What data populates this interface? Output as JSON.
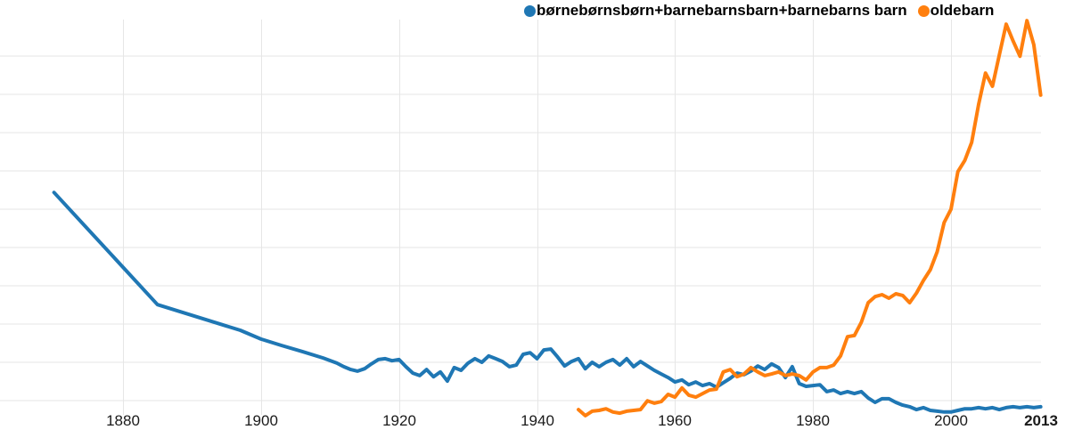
{
  "legend": {
    "items": [
      {
        "label": "børnebørnsbørn+barnebarnsbarn+barnebarns barn",
        "color": "#1f77b4"
      },
      {
        "label": "oldebarn",
        "color": "#ff7f0e"
      }
    ]
  },
  "axis": {
    "x_ticks": [
      {
        "label": "1880",
        "year": 1880,
        "bold": false,
        "gridline": true
      },
      {
        "label": "1900",
        "year": 1900,
        "bold": false,
        "gridline": true
      },
      {
        "label": "1920",
        "year": 1920,
        "bold": false,
        "gridline": true
      },
      {
        "label": "1940",
        "year": 1940,
        "bold": false,
        "gridline": true
      },
      {
        "label": "1960",
        "year": 1960,
        "bold": false,
        "gridline": true
      },
      {
        "label": "1980",
        "year": 1980,
        "bold": false,
        "gridline": true
      },
      {
        "label": "2000",
        "year": 2000,
        "bold": false,
        "gridline": true
      },
      {
        "label": "2013",
        "year": 2013,
        "bold": true,
        "gridline": false
      }
    ]
  },
  "chart_data": {
    "type": "line",
    "title": "",
    "xlabel": "",
    "ylabel": "",
    "x_range": [
      1868,
      2013
    ],
    "y_range": [
      0,
      100
    ],
    "y_unit": "relative frequency (y axis unlabeled; values are % of plot height)",
    "grid": "light horizontal gridlines + vertical gridlines at x ticks",
    "legend_position": "top",
    "grid_color": "#e6e6e6",
    "series": [
      {
        "name": "børnebørnsbørn+barnebarnsbarn+barnebarns barn",
        "color": "#1f77b4",
        "points": [
          [
            1870,
            56.4
          ],
          [
            1885,
            28.4
          ],
          [
            1897,
            22.0
          ],
          [
            1900,
            19.8
          ],
          [
            1903,
            18.2
          ],
          [
            1906,
            16.7
          ],
          [
            1909,
            15.1
          ],
          [
            1911,
            13.8
          ],
          [
            1912,
            12.9
          ],
          [
            1913,
            12.2
          ],
          [
            1914,
            11.8
          ],
          [
            1915,
            12.4
          ],
          [
            1916,
            13.6
          ],
          [
            1917,
            14.7
          ],
          [
            1918,
            14.9
          ],
          [
            1919,
            14.4
          ],
          [
            1920,
            14.7
          ],
          [
            1921,
            12.9
          ],
          [
            1922,
            11.3
          ],
          [
            1923,
            10.7
          ],
          [
            1924,
            12.2
          ],
          [
            1925,
            10.4
          ],
          [
            1926,
            11.6
          ],
          [
            1927,
            9.3
          ],
          [
            1928,
            12.7
          ],
          [
            1929,
            12.0
          ],
          [
            1930,
            13.8
          ],
          [
            1931,
            14.9
          ],
          [
            1932,
            14.0
          ],
          [
            1933,
            15.6
          ],
          [
            1934,
            14.9
          ],
          [
            1935,
            14.2
          ],
          [
            1936,
            12.9
          ],
          [
            1937,
            13.3
          ],
          [
            1938,
            16.0
          ],
          [
            1939,
            16.4
          ],
          [
            1940,
            14.9
          ],
          [
            1941,
            17.1
          ],
          [
            1942,
            17.3
          ],
          [
            1943,
            15.3
          ],
          [
            1944,
            13.1
          ],
          [
            1945,
            14.2
          ],
          [
            1946,
            14.9
          ],
          [
            1947,
            12.4
          ],
          [
            1948,
            14.0
          ],
          [
            1949,
            12.9
          ],
          [
            1950,
            14.0
          ],
          [
            1951,
            14.7
          ],
          [
            1952,
            13.3
          ],
          [
            1953,
            14.9
          ],
          [
            1954,
            12.9
          ],
          [
            1955,
            14.2
          ],
          [
            1956,
            13.1
          ],
          [
            1957,
            12.0
          ],
          [
            1958,
            11.1
          ],
          [
            1959,
            10.2
          ],
          [
            1960,
            9.1
          ],
          [
            1961,
            9.6
          ],
          [
            1962,
            8.4
          ],
          [
            1963,
            9.1
          ],
          [
            1964,
            8.2
          ],
          [
            1965,
            8.7
          ],
          [
            1966,
            7.8
          ],
          [
            1967,
            8.9
          ],
          [
            1968,
            10.0
          ],
          [
            1969,
            11.3
          ],
          [
            1970,
            10.9
          ],
          [
            1971,
            11.8
          ],
          [
            1972,
            13.1
          ],
          [
            1973,
            12.2
          ],
          [
            1974,
            13.6
          ],
          [
            1975,
            12.7
          ],
          [
            1976,
            10.2
          ],
          [
            1977,
            12.9
          ],
          [
            1978,
            8.7
          ],
          [
            1979,
            8.0
          ],
          [
            1980,
            8.2
          ],
          [
            1981,
            8.4
          ],
          [
            1982,
            6.7
          ],
          [
            1983,
            7.1
          ],
          [
            1984,
            6.2
          ],
          [
            1985,
            6.7
          ],
          [
            1986,
            6.2
          ],
          [
            1987,
            6.7
          ],
          [
            1988,
            5.1
          ],
          [
            1989,
            4.0
          ],
          [
            1990,
            4.9
          ],
          [
            1991,
            4.9
          ],
          [
            1992,
            4.0
          ],
          [
            1993,
            3.3
          ],
          [
            1994,
            2.9
          ],
          [
            1995,
            2.2
          ],
          [
            1996,
            2.7
          ],
          [
            1997,
            2.0
          ],
          [
            1998,
            1.8
          ],
          [
            1999,
            1.6
          ],
          [
            2000,
            1.6
          ],
          [
            2001,
            2.0
          ],
          [
            2002,
            2.4
          ],
          [
            2003,
            2.4
          ],
          [
            2004,
            2.7
          ],
          [
            2005,
            2.4
          ],
          [
            2006,
            2.7
          ],
          [
            2007,
            2.2
          ],
          [
            2008,
            2.7
          ],
          [
            2009,
            2.9
          ],
          [
            2010,
            2.7
          ],
          [
            2011,
            2.9
          ],
          [
            2012,
            2.7
          ],
          [
            2013,
            2.9
          ]
        ]
      },
      {
        "name": "oldebarn",
        "color": "#ff7f0e",
        "points": [
          [
            1946,
            2.2
          ],
          [
            1947,
            0.7
          ],
          [
            1948,
            1.8
          ],
          [
            1949,
            2.0
          ],
          [
            1950,
            2.4
          ],
          [
            1951,
            1.6
          ],
          [
            1952,
            1.3
          ],
          [
            1953,
            1.8
          ],
          [
            1954,
            2.0
          ],
          [
            1955,
            2.2
          ],
          [
            1956,
            4.4
          ],
          [
            1957,
            3.8
          ],
          [
            1958,
            4.2
          ],
          [
            1959,
            6.0
          ],
          [
            1960,
            5.3
          ],
          [
            1961,
            7.6
          ],
          [
            1962,
            5.8
          ],
          [
            1963,
            5.3
          ],
          [
            1964,
            6.2
          ],
          [
            1965,
            7.1
          ],
          [
            1966,
            7.3
          ],
          [
            1967,
            11.6
          ],
          [
            1968,
            12.2
          ],
          [
            1969,
            10.4
          ],
          [
            1970,
            11.1
          ],
          [
            1971,
            12.7
          ],
          [
            1972,
            11.6
          ],
          [
            1973,
            10.7
          ],
          [
            1974,
            11.1
          ],
          [
            1975,
            11.6
          ],
          [
            1976,
            10.7
          ],
          [
            1977,
            11.1
          ],
          [
            1978,
            10.7
          ],
          [
            1979,
            9.6
          ],
          [
            1980,
            11.6
          ],
          [
            1981,
            12.7
          ],
          [
            1982,
            12.7
          ],
          [
            1983,
            13.3
          ],
          [
            1984,
            15.6
          ],
          [
            1985,
            20.4
          ],
          [
            1986,
            20.7
          ],
          [
            1987,
            24.0
          ],
          [
            1988,
            28.9
          ],
          [
            1989,
            30.4
          ],
          [
            1990,
            30.9
          ],
          [
            1991,
            30.0
          ],
          [
            1992,
            31.1
          ],
          [
            1993,
            30.7
          ],
          [
            1994,
            28.9
          ],
          [
            1995,
            31.3
          ],
          [
            1996,
            34.4
          ],
          [
            1997,
            37.1
          ],
          [
            1998,
            41.6
          ],
          [
            1999,
            48.9
          ],
          [
            2000,
            52.2
          ],
          [
            2001,
            61.6
          ],
          [
            2002,
            64.4
          ],
          [
            2003,
            68.9
          ],
          [
            2004,
            78.4
          ],
          [
            2005,
            86.2
          ],
          [
            2006,
            82.9
          ],
          [
            2007,
            90.7
          ],
          [
            2008,
            98.4
          ],
          [
            2009,
            94.2
          ],
          [
            2010,
            90.4
          ],
          [
            2011,
            99.3
          ],
          [
            2012,
            93.3
          ],
          [
            2013,
            80.7
          ]
        ]
      }
    ]
  }
}
